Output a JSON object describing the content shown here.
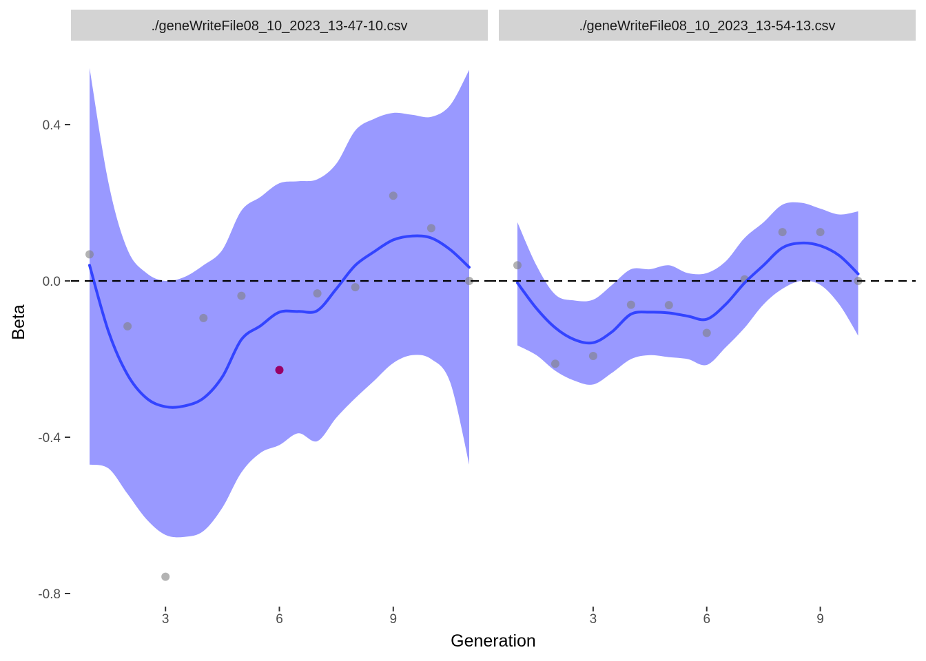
{
  "colors": {
    "ribbon": "#9999ff",
    "smooth_line": "#3344ff",
    "point": "#808080",
    "point_highlight": "#990066",
    "strip_bg": "#d3d3d3",
    "zero_line": "#000000"
  },
  "chart_data": {
    "type": "scatter",
    "ylabel": "Beta",
    "xlabel": "Generation",
    "ylim": [
      -0.8,
      0.4
    ],
    "y_ticks": [
      0.4,
      0.0,
      -0.4,
      -0.8
    ],
    "y_tick_labels": [
      "0.4",
      "0.0",
      "-0.4",
      "-0.8"
    ],
    "x_ticks": [
      3,
      6,
      9
    ],
    "x_tick_labels": [
      "3",
      "6",
      "9"
    ],
    "grid": false,
    "reference_line": {
      "y": 0.0,
      "style": "dashed"
    },
    "panels": [
      {
        "strip_label": "./geneWriteFile08_10_2023_13-47-10.csv",
        "xlim": [
          1,
          11
        ],
        "points": [
          {
            "x": 1,
            "y": 0.068
          },
          {
            "x": 2,
            "y": -0.116
          },
          {
            "x": 3,
            "y": -0.757
          },
          {
            "x": 4,
            "y": -0.095
          },
          {
            "x": 5,
            "y": -0.038
          },
          {
            "x": 6,
            "y": -0.228,
            "highlight": true
          },
          {
            "x": 7,
            "y": -0.032
          },
          {
            "x": 8,
            "y": -0.016
          },
          {
            "x": 9,
            "y": 0.218
          },
          {
            "x": 10,
            "y": 0.135
          },
          {
            "x": 11,
            "y": 0.0
          }
        ],
        "smooth": [
          {
            "x": 1.0,
            "y": 0.04,
            "lo": -0.47,
            "hi": 0.545
          },
          {
            "x": 1.5,
            "y": -0.13,
            "lo": -0.48,
            "hi": 0.25
          },
          {
            "x": 2.0,
            "y": -0.24,
            "lo": -0.545,
            "hi": 0.08
          },
          {
            "x": 2.5,
            "y": -0.3,
            "lo": -0.61,
            "hi": 0.02
          },
          {
            "x": 3.0,
            "y": -0.322,
            "lo": -0.65,
            "hi": 0.0
          },
          {
            "x": 3.5,
            "y": -0.32,
            "lo": -0.655,
            "hi": 0.01
          },
          {
            "x": 4.0,
            "y": -0.3,
            "lo": -0.64,
            "hi": 0.04
          },
          {
            "x": 4.5,
            "y": -0.245,
            "lo": -0.58,
            "hi": 0.08
          },
          {
            "x": 5.0,
            "y": -0.15,
            "lo": -0.49,
            "hi": 0.18
          },
          {
            "x": 5.5,
            "y": -0.115,
            "lo": -0.44,
            "hi": 0.215
          },
          {
            "x": 6.0,
            "y": -0.08,
            "lo": -0.42,
            "hi": 0.25
          },
          {
            "x": 6.5,
            "y": -0.078,
            "lo": -0.39,
            "hi": 0.255
          },
          {
            "x": 7.0,
            "y": -0.076,
            "lo": -0.41,
            "hi": 0.26
          },
          {
            "x": 7.5,
            "y": -0.02,
            "lo": -0.35,
            "hi": 0.3
          },
          {
            "x": 8.0,
            "y": 0.04,
            "lo": -0.3,
            "hi": 0.385
          },
          {
            "x": 8.5,
            "y": 0.075,
            "lo": -0.255,
            "hi": 0.415
          },
          {
            "x": 9.0,
            "y": 0.105,
            "lo": -0.21,
            "hi": 0.43
          },
          {
            "x": 9.5,
            "y": 0.115,
            "lo": -0.19,
            "hi": 0.425
          },
          {
            "x": 10.0,
            "y": 0.11,
            "lo": -0.2,
            "hi": 0.42
          },
          {
            "x": 10.5,
            "y": 0.08,
            "lo": -0.26,
            "hi": 0.45
          },
          {
            "x": 11.0,
            "y": 0.035,
            "lo": -0.47,
            "hi": 0.54
          }
        ]
      },
      {
        "strip_label": "./geneWriteFile08_10_2023_13-54-13.csv",
        "xlim": [
          1,
          10
        ],
        "points": [
          {
            "x": 1,
            "y": 0.04
          },
          {
            "x": 2,
            "y": -0.212
          },
          {
            "x": 3,
            "y": -0.192
          },
          {
            "x": 4,
            "y": -0.061
          },
          {
            "x": 5,
            "y": -0.062
          },
          {
            "x": 6,
            "y": -0.133
          },
          {
            "x": 7,
            "y": 0.004
          },
          {
            "x": 8,
            "y": 0.125
          },
          {
            "x": 9,
            "y": 0.125
          },
          {
            "x": 10,
            "y": 0.0
          }
        ],
        "smooth": [
          {
            "x": 1.0,
            "y": -0.005,
            "lo": -0.165,
            "hi": 0.15
          },
          {
            "x": 1.5,
            "y": -0.07,
            "lo": -0.19,
            "hi": 0.04
          },
          {
            "x": 2.0,
            "y": -0.12,
            "lo": -0.23,
            "hi": -0.035
          },
          {
            "x": 2.5,
            "y": -0.15,
            "lo": -0.255,
            "hi": -0.05
          },
          {
            "x": 3.0,
            "y": -0.158,
            "lo": -0.265,
            "hi": -0.048
          },
          {
            "x": 3.5,
            "y": -0.13,
            "lo": -0.235,
            "hi": -0.01
          },
          {
            "x": 4.0,
            "y": -0.085,
            "lo": -0.2,
            "hi": 0.03
          },
          {
            "x": 4.5,
            "y": -0.08,
            "lo": -0.19,
            "hi": 0.03
          },
          {
            "x": 5.0,
            "y": -0.082,
            "lo": -0.195,
            "hi": 0.04
          },
          {
            "x": 5.5,
            "y": -0.09,
            "lo": -0.2,
            "hi": 0.02
          },
          {
            "x": 6.0,
            "y": -0.098,
            "lo": -0.215,
            "hi": 0.02
          },
          {
            "x": 6.5,
            "y": -0.06,
            "lo": -0.17,
            "hi": 0.05
          },
          {
            "x": 7.0,
            "y": -0.005,
            "lo": -0.12,
            "hi": 0.11
          },
          {
            "x": 7.5,
            "y": 0.04,
            "lo": -0.06,
            "hi": 0.15
          },
          {
            "x": 8.0,
            "y": 0.085,
            "lo": -0.02,
            "hi": 0.195
          },
          {
            "x": 8.5,
            "y": 0.097,
            "lo": 0.0,
            "hi": 0.2
          },
          {
            "x": 9.0,
            "y": 0.09,
            "lo": -0.01,
            "hi": 0.185
          },
          {
            "x": 9.5,
            "y": 0.065,
            "lo": -0.06,
            "hi": 0.17
          },
          {
            "x": 10.0,
            "y": 0.018,
            "lo": -0.14,
            "hi": 0.178
          }
        ]
      }
    ]
  }
}
